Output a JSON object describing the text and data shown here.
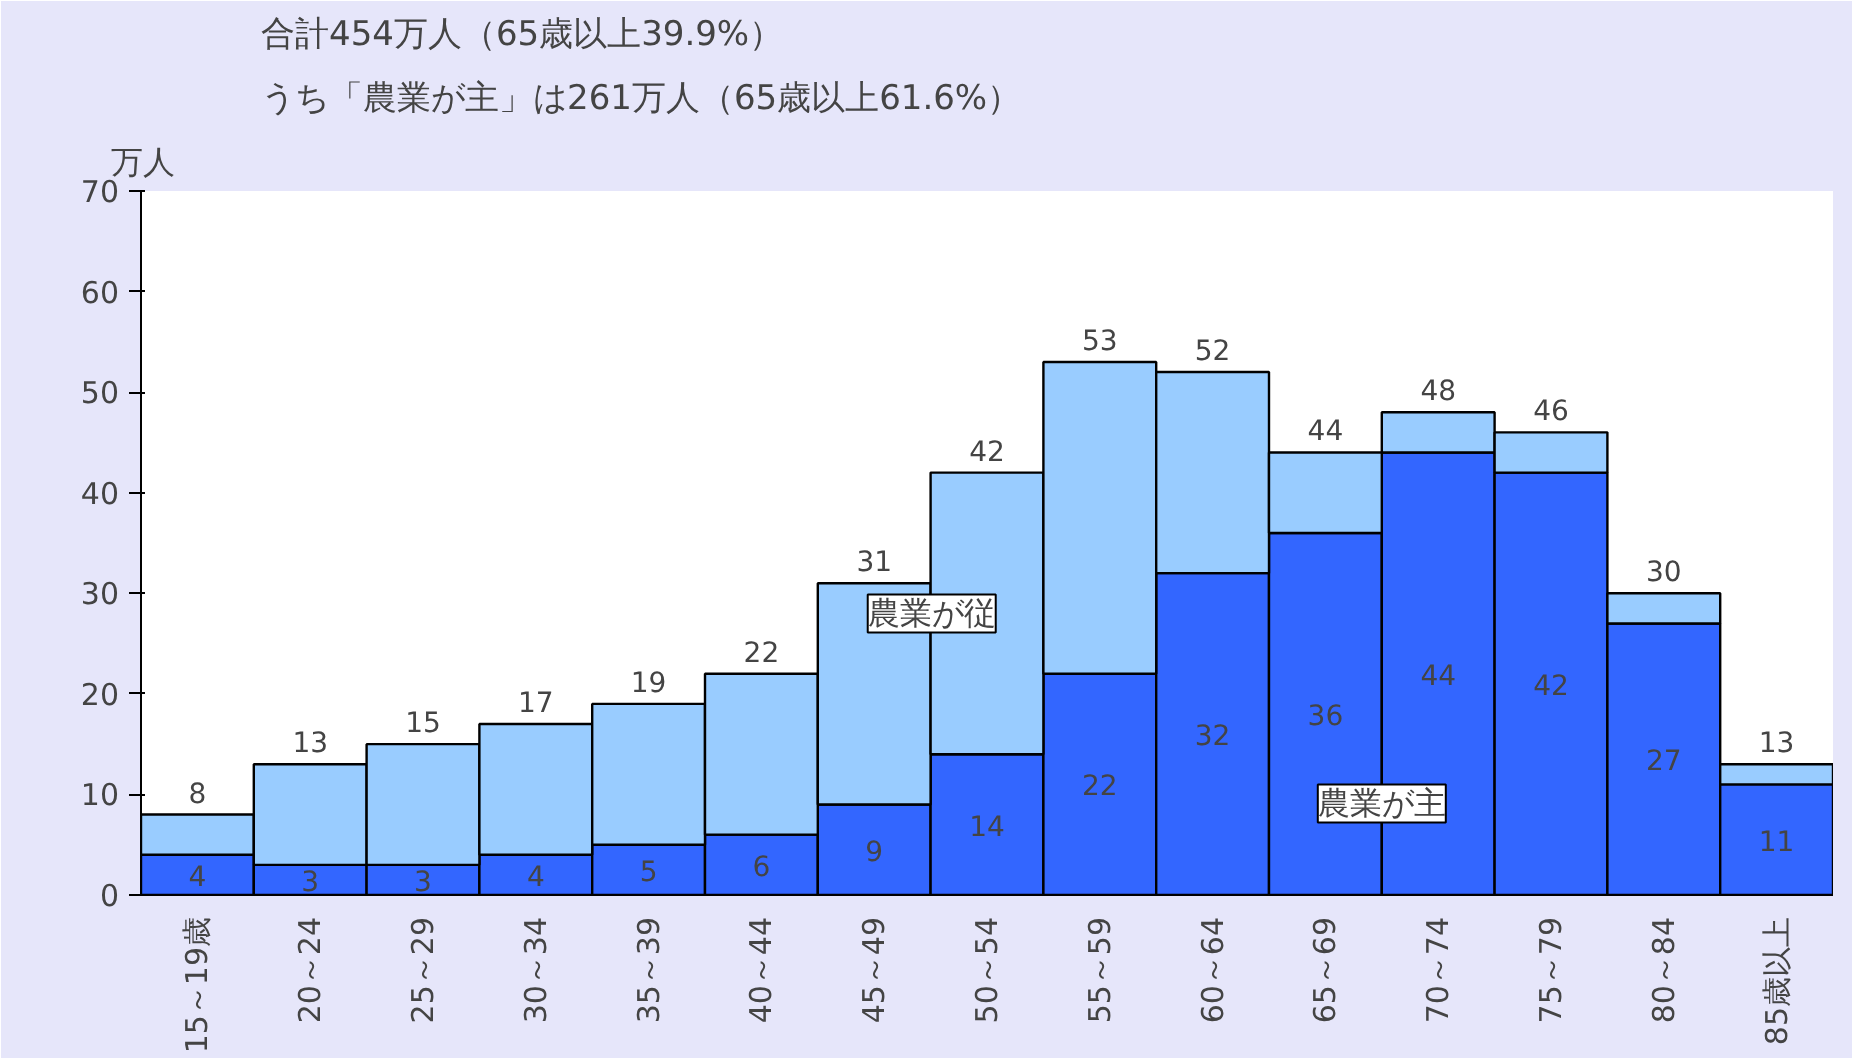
{
  "chart_data": {
    "type": "bar",
    "stacked": true,
    "title": "合計454万人（65歳以上39.9%）",
    "subtitle": "うち「農業が主」は261万人（65歳以上61.6%）",
    "ylabel": "万人",
    "categories": [
      "15～19歳",
      "20～24",
      "25～29",
      "30～34",
      "35～39",
      "40～44",
      "45～49",
      "50～54",
      "55～59",
      "60～64",
      "65～69",
      "70～74",
      "75～79",
      "80～84",
      "85歳以上"
    ],
    "series": [
      {
        "name": "農業が主",
        "color": "#3366ff",
        "values": [
          4,
          3,
          3,
          4,
          5,
          6,
          9,
          14,
          22,
          32,
          36,
          44,
          42,
          27,
          11
        ],
        "value_labels": [
          "4",
          "3",
          "3",
          "4",
          "5",
          "6",
          "9",
          "14",
          "22",
          "32",
          "36",
          "44",
          "42",
          "27",
          "11"
        ]
      },
      {
        "name": "農業が従",
        "color": "#99ccff",
        "values": [
          4,
          10,
          12,
          13,
          14,
          16,
          22,
          28,
          31,
          20,
          8,
          4,
          4,
          3,
          2
        ]
      }
    ],
    "totals": [
      "8",
      "13",
      "15",
      "17",
      "19",
      "22",
      "31",
      "42",
      "53",
      "52",
      "44",
      "48",
      "46",
      "30",
      "13"
    ],
    "ylim": [
      0,
      70
    ],
    "yticks": [
      0,
      10,
      20,
      30,
      40,
      50,
      60,
      70
    ],
    "grid": false
  }
}
